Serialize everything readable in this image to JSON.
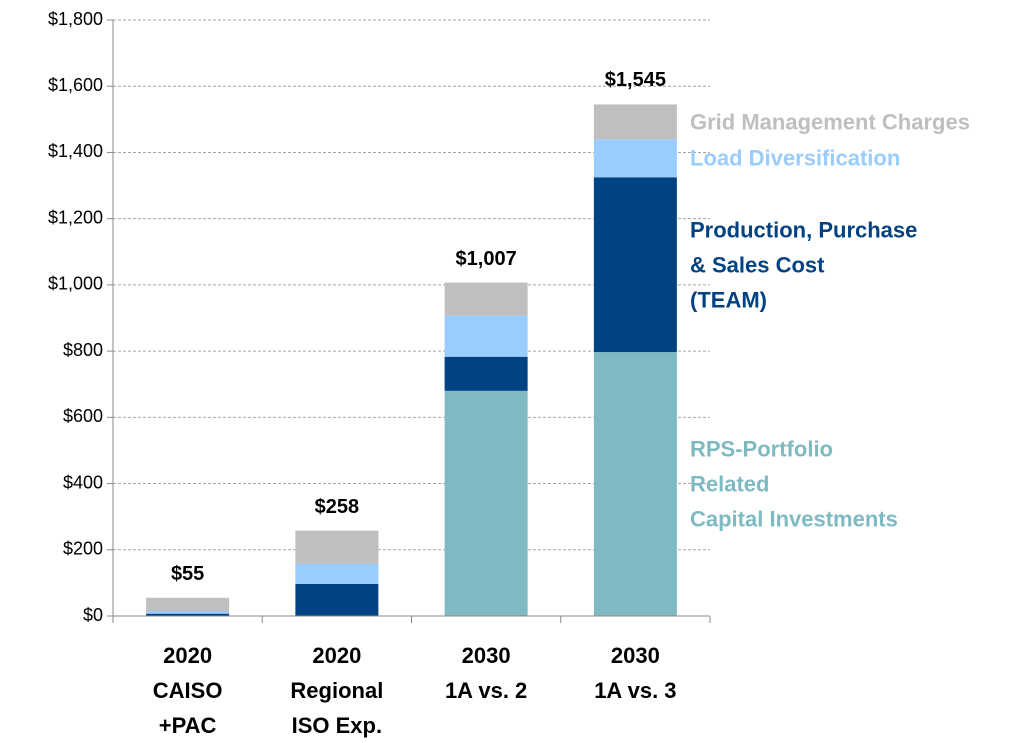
{
  "chart_data": {
    "type": "stacked_bar",
    "categories": [
      "2020\nCAISO\n+PAC",
      "2020\nRegional\nISO Exp.",
      "2030\n1A vs. 2",
      "2030\n1A vs. 3"
    ],
    "series": [
      {
        "name": "RPS-Portfolio\nRelated\nCapital Investments",
        "color": "#7fbac3",
        "values": [
          0,
          0,
          680,
          797
        ]
      },
      {
        "name": "Production, Purchase\n& Sales Cost\n(TEAM)",
        "color": "#004282",
        "values": [
          7,
          97,
          103,
          528
        ]
      },
      {
        "name": "Load Diversification",
        "color": "#99ccff",
        "values": [
          8,
          60,
          124,
          115
        ]
      },
      {
        "name": "Grid Management Charges",
        "color": "#bfbfbf",
        "values": [
          40,
          101,
          100,
          105
        ]
      }
    ],
    "totals": [
      55,
      258,
      1007,
      1545
    ],
    "total_labels": [
      "$55",
      "$258",
      "$1,007",
      "$1,545"
    ],
    "ylim": [
      0,
      1800
    ],
    "yticks": [
      {
        "value": 0,
        "label": "$0"
      },
      {
        "value": 200,
        "label": "$200"
      },
      {
        "value": 400,
        "label": "$400"
      },
      {
        "value": 600,
        "label": "$600"
      },
      {
        "value": 800,
        "label": "$800"
      },
      {
        "value": 1000,
        "label": "$1,000"
      },
      {
        "value": 1200,
        "label": "$1,200"
      },
      {
        "value": 1400,
        "label": "$1,400"
      },
      {
        "value": 1600,
        "label": "$1,600"
      },
      {
        "value": 1800,
        "label": "$1,800"
      }
    ],
    "grid": true
  }
}
